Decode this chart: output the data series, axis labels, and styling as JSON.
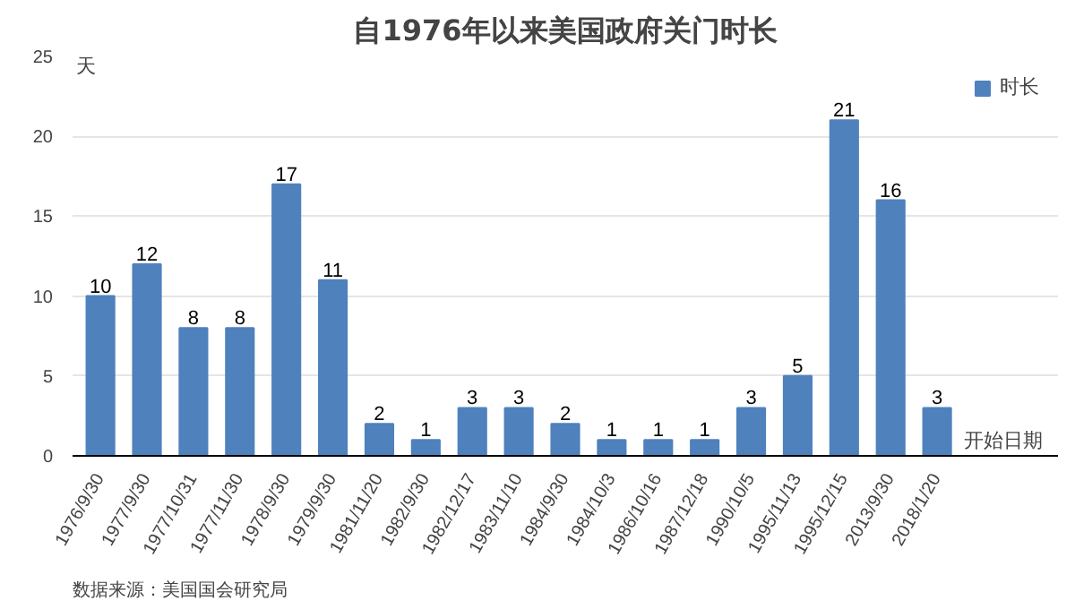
{
  "chart_data": {
    "type": "bar",
    "title": "自1976年以来美国政府关门时长",
    "ylabel": "天",
    "xlabel": "开始日期",
    "categories": [
      "1976/9/30",
      "1977/9/30",
      "1977/10/31",
      "1977/11/30",
      "1978/9/30",
      "1979/9/30",
      "1981/11/20",
      "1982/9/30",
      "1982/12/17",
      "1983/11/10",
      "1984/9/30",
      "1984/10/3",
      "1986/10/16",
      "1987/12/18",
      "1990/10/5",
      "1995/11/13",
      "1995/12/15",
      "2013/9/30",
      "2018/1/20"
    ],
    "series": [
      {
        "name": "时长",
        "color": "#4f81bd",
        "values": [
          10,
          12,
          8,
          8,
          17,
          11,
          2,
          1,
          3,
          3,
          2,
          1,
          1,
          1,
          3,
          5,
          21,
          16,
          3
        ]
      }
    ],
    "ylim": [
      0,
      25
    ],
    "yticks": [
      0,
      5,
      10,
      15,
      20,
      25
    ],
    "grid": "y",
    "legend": "top right",
    "data_labels": true,
    "annotations": [
      "数据来源：美国国会研究局"
    ]
  }
}
